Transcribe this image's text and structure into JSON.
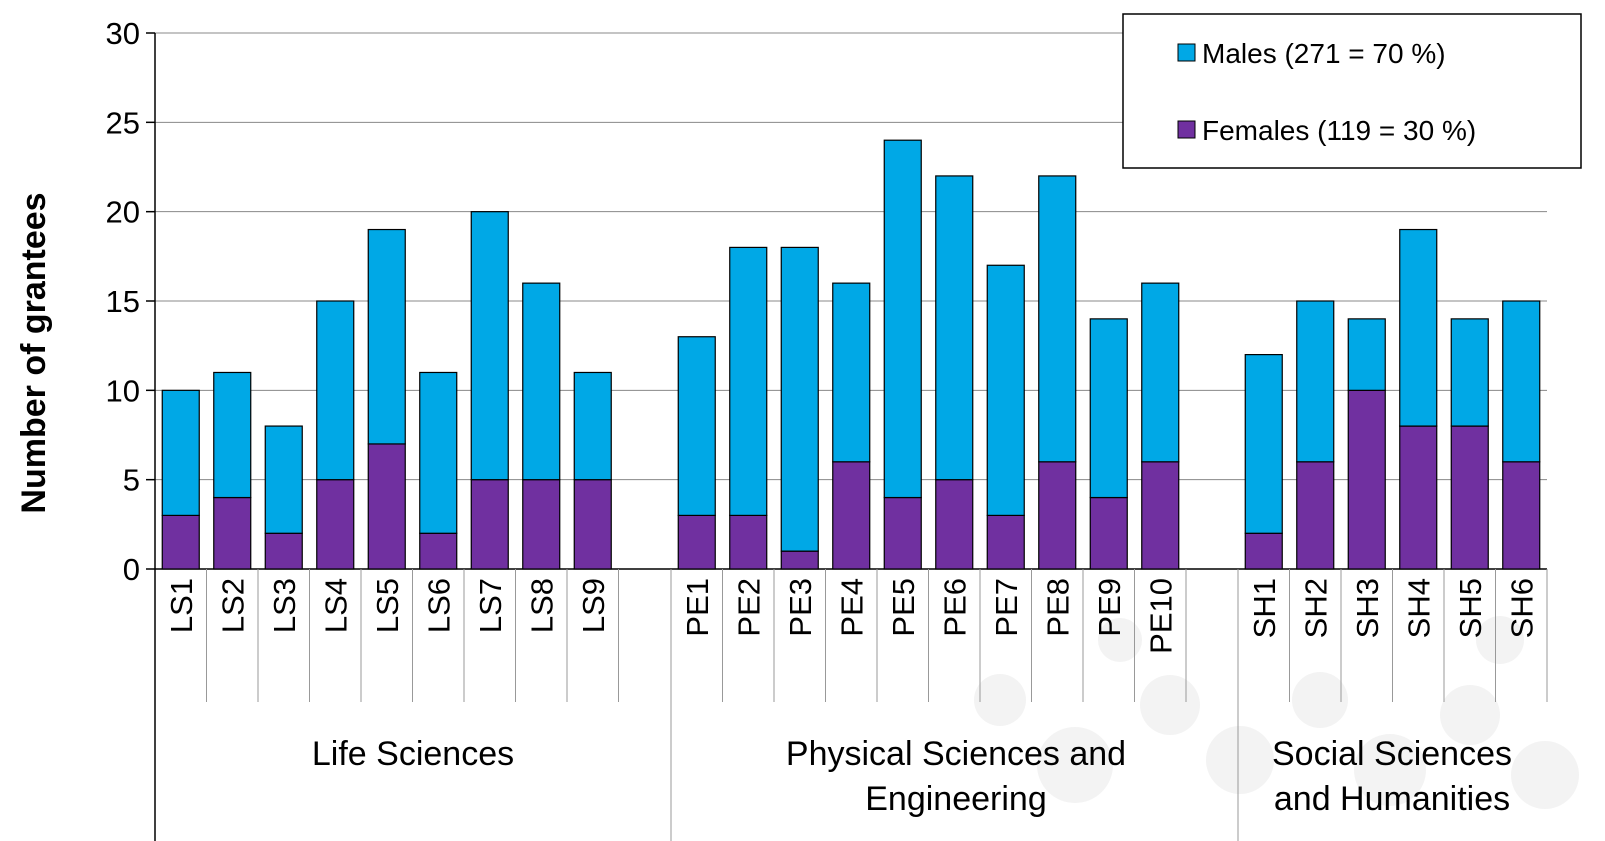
{
  "chart_data": {
    "type": "bar",
    "stacked": true,
    "ylabel": "Number of grantees",
    "ylim": [
      0,
      30
    ],
    "yticks": [
      0,
      5,
      10,
      15,
      20,
      25,
      30
    ],
    "grid": true,
    "legend_position": "top-right",
    "colors": {
      "males": "#00a8e6",
      "females": "#7030a0"
    },
    "categories": [
      "LS1",
      "LS2",
      "LS3",
      "LS4",
      "LS5",
      "LS6",
      "LS7",
      "LS8",
      "LS9",
      "PE1",
      "PE2",
      "PE3",
      "PE4",
      "PE5",
      "PE6",
      "PE7",
      "PE8",
      "PE9",
      "PE10",
      "SH1",
      "SH2",
      "SH3",
      "SH4",
      "SH5",
      "SH6"
    ],
    "groups": [
      {
        "label": "Life Sciences",
        "categories": [
          "LS1",
          "LS2",
          "LS3",
          "LS4",
          "LS5",
          "LS6",
          "LS7",
          "LS8",
          "LS9"
        ]
      },
      {
        "label": "Physical Sciences and Engineering",
        "categories": [
          "PE1",
          "PE2",
          "PE3",
          "PE4",
          "PE5",
          "PE6",
          "PE7",
          "PE8",
          "PE9",
          "PE10"
        ]
      },
      {
        "label": "Social Sciences and Humanities",
        "categories": [
          "SH1",
          "SH2",
          "SH3",
          "SH4",
          "SH5",
          "SH6"
        ]
      }
    ],
    "series": [
      {
        "name": "Females (119 = 30 %)",
        "key": "females",
        "values": [
          3,
          4,
          2,
          5,
          7,
          2,
          5,
          5,
          5,
          3,
          3,
          1,
          6,
          4,
          5,
          3,
          6,
          4,
          6,
          2,
          6,
          10,
          8,
          8,
          6
        ]
      },
      {
        "name": "Males (271 = 70 %)",
        "key": "males",
        "values": [
          7,
          7,
          6,
          10,
          12,
          9,
          15,
          11,
          6,
          10,
          15,
          17,
          10,
          20,
          17,
          14,
          16,
          10,
          10,
          10,
          9,
          4,
          11,
          6,
          9
        ]
      }
    ]
  }
}
